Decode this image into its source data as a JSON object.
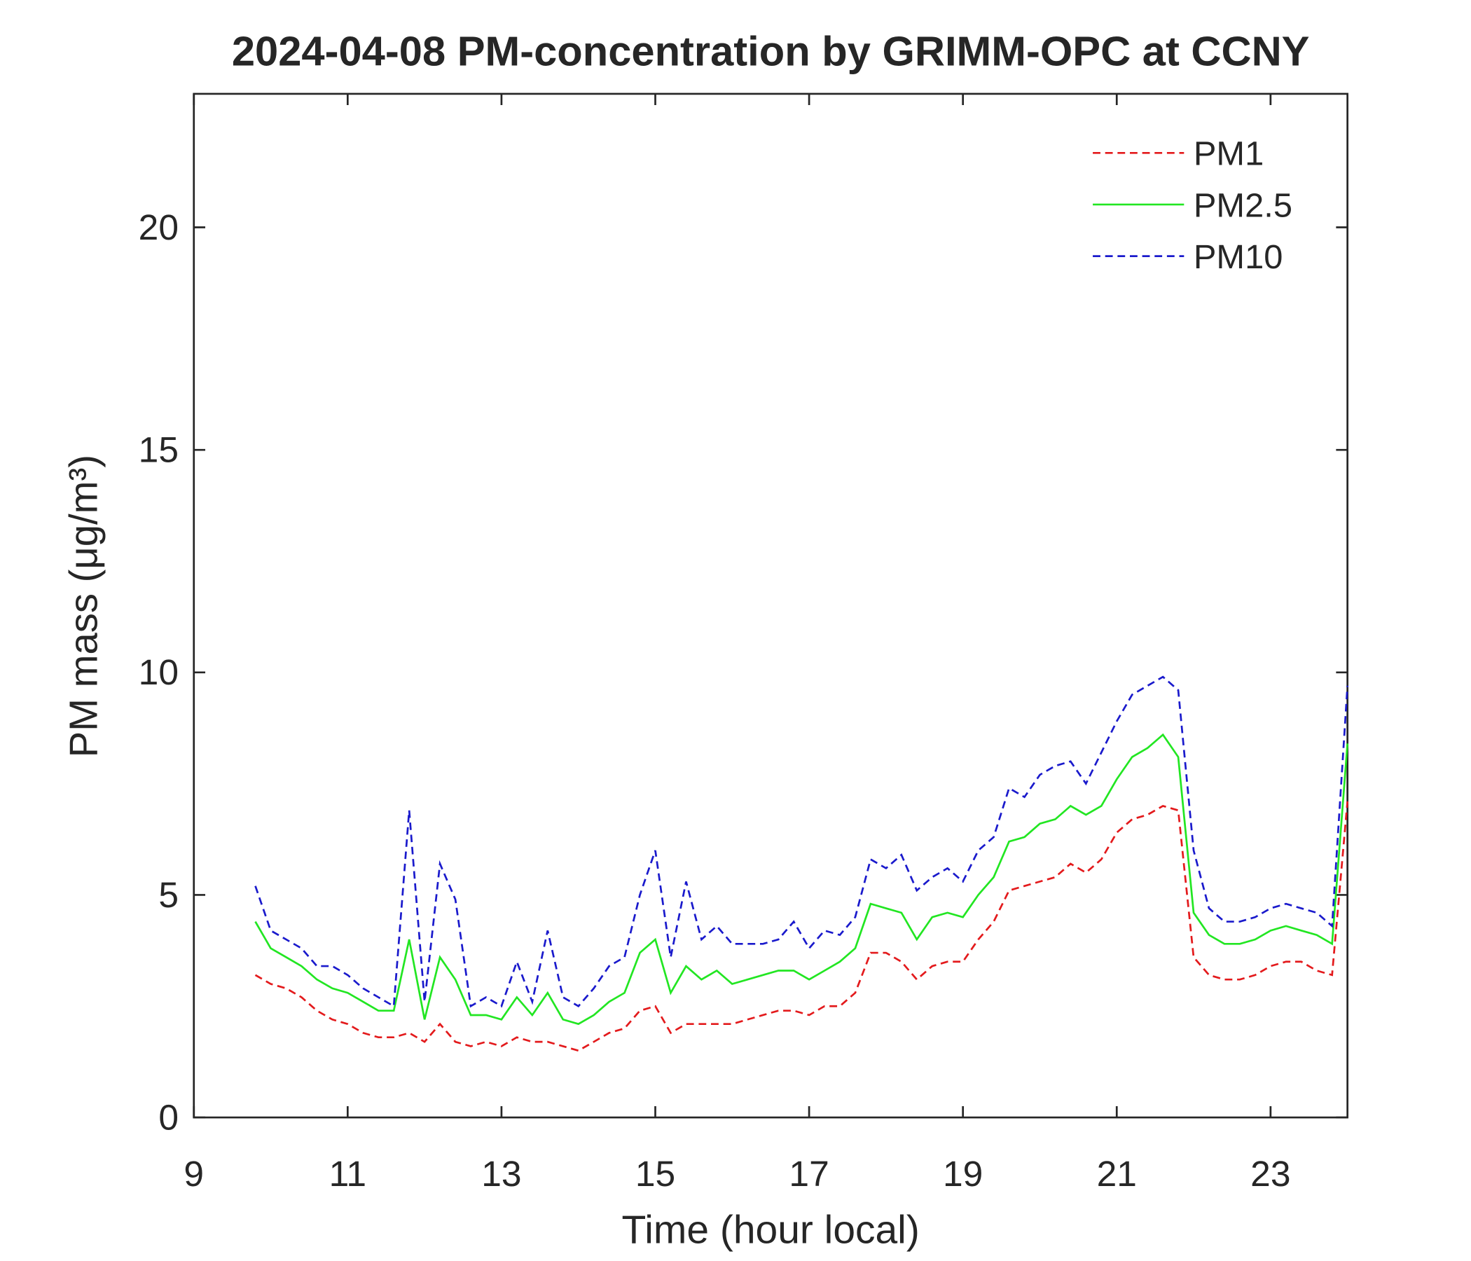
{
  "chart_data": {
    "type": "line",
    "title": "2024-04-08 PM-concentration by GRIMM-OPC at CCNY",
    "x_label": "Time (hour local)",
    "y_label": "PM mass (μg/m³)",
    "x": [
      9.8,
      10.0,
      10.2,
      10.4,
      10.6,
      10.8,
      11.0,
      11.2,
      11.4,
      11.6,
      11.8,
      12.0,
      12.2,
      12.4,
      12.6,
      12.8,
      13.0,
      13.2,
      13.4,
      13.6,
      13.8,
      14.0,
      14.2,
      14.4,
      14.6,
      14.8,
      15.0,
      15.2,
      15.4,
      15.6,
      15.8,
      16.0,
      16.2,
      16.4,
      16.6,
      16.8,
      17.0,
      17.2,
      17.4,
      17.6,
      17.8,
      18.0,
      18.2,
      18.4,
      18.6,
      18.8,
      19.0,
      19.2,
      19.4,
      19.6,
      19.8,
      20.0,
      20.2,
      20.4,
      20.6,
      20.8,
      21.0,
      21.2,
      21.4,
      21.6,
      21.8,
      22.0,
      22.2,
      22.4,
      22.6,
      22.8,
      23.0,
      23.2,
      23.4,
      23.6,
      23.8,
      24.0
    ],
    "series": [
      {
        "name": "PM1",
        "color": "#e31a1c",
        "dashed": true,
        "values": [
          3.2,
          3.0,
          2.9,
          2.7,
          2.4,
          2.2,
          2.1,
          1.9,
          1.8,
          1.8,
          1.9,
          1.7,
          2.1,
          1.7,
          1.6,
          1.7,
          1.6,
          1.8,
          1.7,
          1.7,
          1.6,
          1.5,
          1.7,
          1.9,
          2.0,
          2.4,
          2.5,
          1.9,
          2.1,
          2.1,
          2.1,
          2.1,
          2.2,
          2.3,
          2.4,
          2.4,
          2.3,
          2.5,
          2.5,
          2.8,
          3.7,
          3.7,
          3.5,
          3.1,
          3.4,
          3.5,
          3.5,
          4.0,
          4.4,
          5.1,
          5.2,
          5.3,
          5.4,
          5.7,
          5.5,
          5.8,
          6.4,
          6.7,
          6.8,
          7.0,
          6.9,
          3.6,
          3.2,
          3.1,
          3.1,
          3.2,
          3.4,
          3.5,
          3.5,
          3.3,
          3.2,
          7.1
        ]
      },
      {
        "name": "PM2.5",
        "color": "#22e622",
        "dashed": false,
        "values": [
          4.4,
          3.8,
          3.6,
          3.4,
          3.1,
          2.9,
          2.8,
          2.6,
          2.4,
          2.4,
          4.0,
          2.2,
          3.6,
          3.1,
          2.3,
          2.3,
          2.2,
          2.7,
          2.3,
          2.8,
          2.2,
          2.1,
          2.3,
          2.6,
          2.8,
          3.7,
          4.0,
          2.8,
          3.4,
          3.1,
          3.3,
          3.0,
          3.1,
          3.2,
          3.3,
          3.3,
          3.1,
          3.3,
          3.5,
          3.8,
          4.8,
          4.7,
          4.6,
          4.0,
          4.5,
          4.6,
          4.5,
          5.0,
          5.4,
          6.2,
          6.3,
          6.6,
          6.7,
          7.0,
          6.8,
          7.0,
          7.6,
          8.1,
          8.3,
          8.6,
          8.1,
          4.6,
          4.1,
          3.9,
          3.9,
          4.0,
          4.2,
          4.3,
          4.2,
          4.1,
          3.9,
          8.4
        ]
      },
      {
        "name": "PM10",
        "color": "#1a1acc",
        "dashed": true,
        "values": [
          5.2,
          4.2,
          4.0,
          3.8,
          3.4,
          3.4,
          3.2,
          2.9,
          2.7,
          2.5,
          6.9,
          2.6,
          5.7,
          4.9,
          2.5,
          2.7,
          2.5,
          3.5,
          2.6,
          4.2,
          2.7,
          2.5,
          2.9,
          3.4,
          3.6,
          5.0,
          6.0,
          3.6,
          5.3,
          4.0,
          4.3,
          3.9,
          3.9,
          3.9,
          4.0,
          4.4,
          3.8,
          4.2,
          4.1,
          4.5,
          5.8,
          5.6,
          5.9,
          5.1,
          5.4,
          5.6,
          5.3,
          6.0,
          6.3,
          7.4,
          7.2,
          7.7,
          7.9,
          8.0,
          7.5,
          8.2,
          8.9,
          9.5,
          9.7,
          9.9,
          9.6,
          6.0,
          4.7,
          4.4,
          4.4,
          4.5,
          4.7,
          4.8,
          4.7,
          4.6,
          4.3,
          9.7
        ]
      }
    ],
    "xlim": [
      9,
      24
    ],
    "ylim": [
      0,
      23
    ],
    "xticks": [
      9,
      11,
      13,
      15,
      17,
      19,
      21,
      23
    ],
    "yticks": [
      0,
      5,
      10,
      15,
      20
    ],
    "grid": false,
    "legend": "top-right"
  }
}
